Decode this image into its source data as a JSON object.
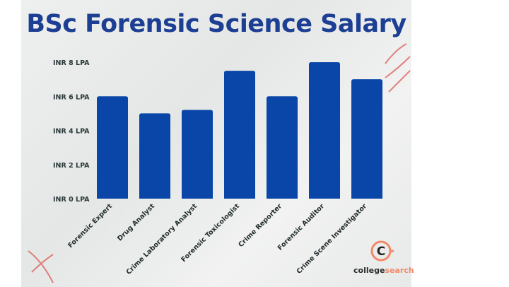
{
  "chart_data": {
    "type": "bar",
    "title": "BSc Forensic Science Salary",
    "categories": [
      "Forensic Expert",
      "Drug Analyst",
      "Crime Laboratory Analyst",
      "Forensic Toxicologist",
      "Crime Reporter",
      "Forensic Auditor",
      "Crime Scene Investigator"
    ],
    "values": [
      6,
      5,
      5.2,
      7.5,
      6,
      8,
      7
    ],
    "unit": "INR LPA",
    "ylim": [
      0,
      8
    ],
    "yticks": [
      "INR 0 LPA",
      "INR 2 LPA",
      "INR 4 LPA",
      "INR 6 LPA",
      "INR 8 LPA"
    ],
    "ytick_values": [
      0,
      2,
      4,
      6,
      8
    ],
    "grid": false,
    "bar_color": "#0a46a8"
  },
  "logo": {
    "text_a": "college",
    "text_b": "search"
  }
}
